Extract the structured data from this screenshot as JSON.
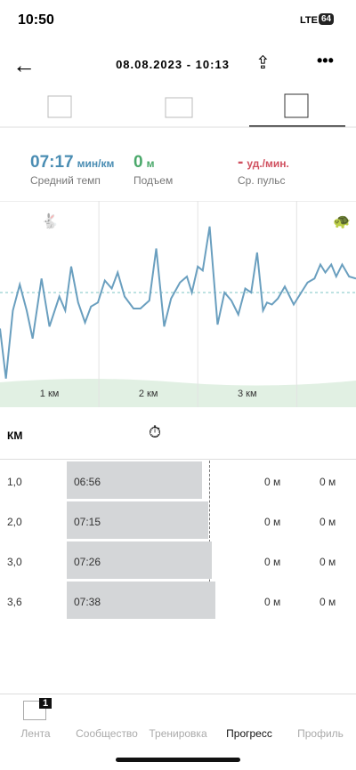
{
  "status_bar": {
    "time": "10:50",
    "network": "LTE",
    "battery": "64"
  },
  "header": {
    "title": "08.08.2023 - 10:13"
  },
  "summary": [
    {
      "value": "07:17",
      "unit": "мин/км",
      "label": "Средний темп"
    },
    {
      "value": "0",
      "unit": "м",
      "label": "Подъем"
    },
    {
      "value": "-",
      "unit": "уд./мин.",
      "label": "Ср. пульс"
    }
  ],
  "chart_data": {
    "type": "line",
    "x": [
      0,
      0.06,
      0.13,
      0.2,
      0.27,
      0.33,
      0.42,
      0.5,
      0.6,
      0.66,
      0.72,
      0.79,
      0.86,
      0.92,
      0.99,
      1.06,
      1.13,
      1.19,
      1.26,
      1.35,
      1.42,
      1.51,
      1.58,
      1.66,
      1.73,
      1.82,
      1.89,
      1.94,
      2.0,
      2.05,
      2.12,
      2.2,
      2.27,
      2.34,
      2.41,
      2.48,
      2.54,
      2.6,
      2.66,
      2.7,
      2.75,
      2.81,
      2.88,
      2.97,
      3.11,
      3.18,
      3.24,
      3.29,
      3.35,
      3.4,
      3.46,
      3.53,
      3.6
    ],
    "series": [
      {
        "color": "#6a9fbf",
        "values": [
          38,
          13,
          47,
          60,
          47,
          33,
          63,
          39,
          54,
          47,
          69,
          51,
          41,
          49,
          51,
          62,
          58,
          66,
          54,
          48,
          48,
          52,
          78,
          39,
          53,
          61,
          64,
          56,
          69,
          67,
          89,
          40,
          56,
          52,
          45,
          58,
          56,
          76,
          47,
          51,
          50,
          53,
          59,
          50,
          61,
          63,
          70,
          66,
          70,
          64,
          70,
          64,
          63
        ]
      }
    ],
    "average": 56,
    "xlim": [
      0,
      3.6
    ],
    "ylim": [
      0,
      100
    ],
    "xticks": [
      {
        "value": 1,
        "label": "1 км"
      },
      {
        "value": 2,
        "label": "2 км"
      },
      {
        "value": 3,
        "label": "3 км"
      }
    ]
  },
  "splits": {
    "header": "КМ",
    "rows": [
      [
        "1,0",
        "06:56",
        "0 м",
        "0 м"
      ],
      [
        "2,0",
        "07:15",
        "0 м",
        "0 м"
      ],
      [
        "3,0",
        "07:26",
        "0 м",
        "0 м"
      ],
      [
        "3,6",
        "07:38",
        "0 м",
        "0 м"
      ]
    ]
  },
  "nav": {
    "badge": "1",
    "items": [
      "Лента",
      "Сообщество",
      "Тренировка",
      "Прогресс",
      "Профиль"
    ]
  }
}
